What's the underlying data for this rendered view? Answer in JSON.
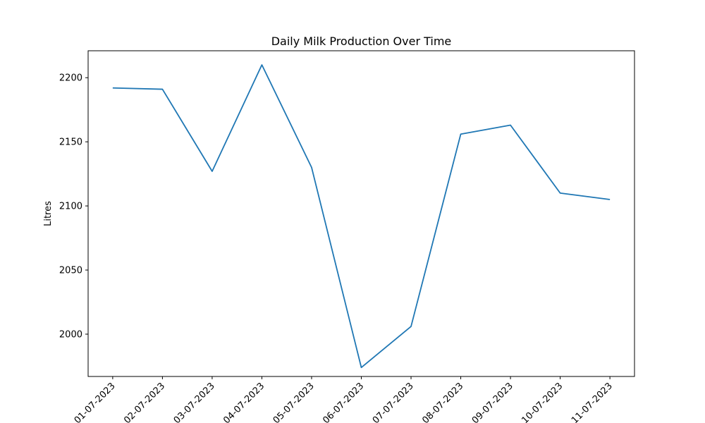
{
  "chart_data": {
    "type": "line",
    "title": "Daily Milk Production Over Time",
    "xlabel": "",
    "ylabel": "Litres",
    "categories": [
      "01-07-2023",
      "02-07-2023",
      "03-07-2023",
      "04-07-2023",
      "05-07-2023",
      "06-07-2023",
      "07-07-2023",
      "08-07-2023",
      "09-07-2023",
      "10-07-2023",
      "11-07-2023"
    ],
    "series": [
      {
        "values": [
          2192,
          2191,
          2127,
          2210,
          2130,
          1974,
          2006,
          2156,
          2163,
          2110,
          2105
        ],
        "color": "#1f77b4"
      }
    ],
    "ylim": [
      1967,
      2221
    ],
    "yticks": [
      2000,
      2050,
      2100,
      2150,
      2200
    ],
    "grid": false,
    "legend": false
  }
}
